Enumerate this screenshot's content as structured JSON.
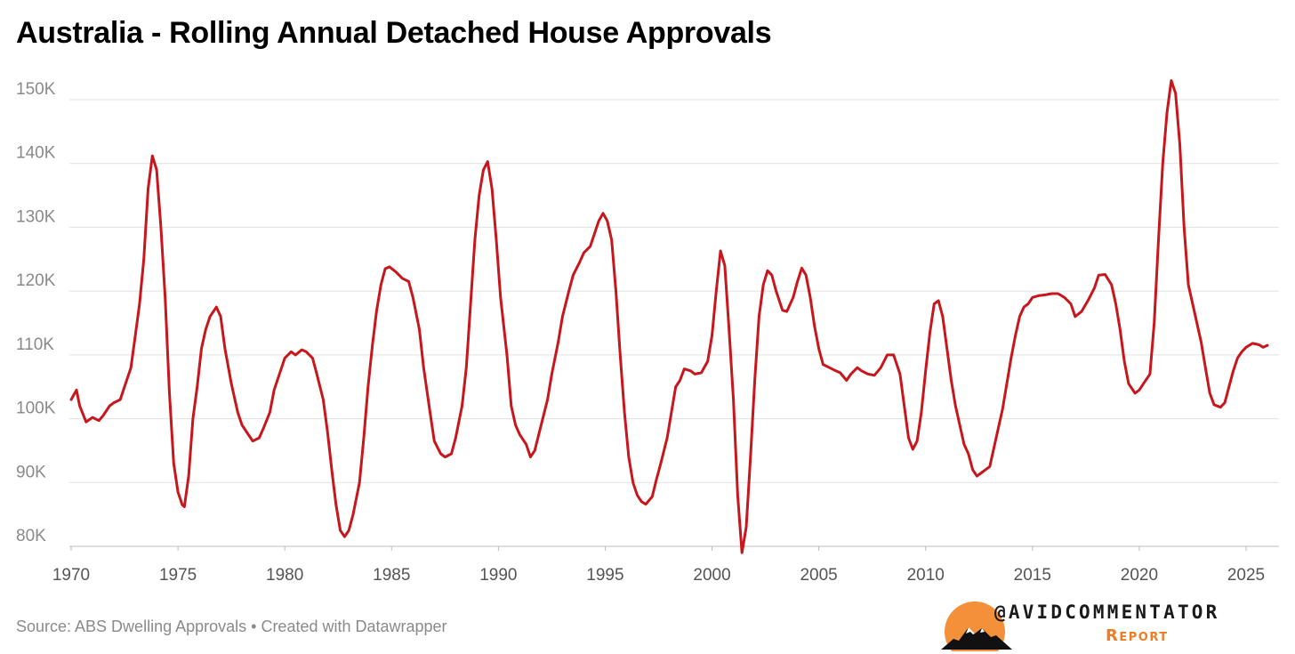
{
  "chart_data": {
    "type": "line",
    "title": "Australia - Rolling Annual Detached House Approvals",
    "xlabel": "",
    "ylabel": "",
    "xlim": [
      1970,
      2026
    ],
    "ylim": [
      80000,
      150000
    ],
    "y_ticks": [
      {
        "value": 80000,
        "label": "80K"
      },
      {
        "value": 90000,
        "label": "90K"
      },
      {
        "value": 100000,
        "label": "100K"
      },
      {
        "value": 110000,
        "label": "110K"
      },
      {
        "value": 120000,
        "label": "120K"
      },
      {
        "value": 130000,
        "label": "130K"
      },
      {
        "value": 140000,
        "label": "140K"
      },
      {
        "value": 150000,
        "label": "150K"
      }
    ],
    "x_ticks": [
      {
        "value": 1970,
        "label": "1970"
      },
      {
        "value": 1975,
        "label": "1975"
      },
      {
        "value": 1980,
        "label": "1980"
      },
      {
        "value": 1985,
        "label": "1985"
      },
      {
        "value": 1990,
        "label": "1990"
      },
      {
        "value": 1995,
        "label": "1995"
      },
      {
        "value": 2000,
        "label": "2000"
      },
      {
        "value": 2005,
        "label": "2005"
      },
      {
        "value": 2010,
        "label": "2010"
      },
      {
        "value": 2015,
        "label": "2015"
      },
      {
        "value": 2020,
        "label": "2020"
      },
      {
        "value": 2025,
        "label": "2025"
      }
    ],
    "grid": true,
    "legend": "none",
    "series": [
      {
        "name": "Rolling annual detached house approvals",
        "color": "#c8171c",
        "points": [
          [
            1970.0,
            103000
          ],
          [
            1970.25,
            104500
          ],
          [
            1970.4,
            102000
          ],
          [
            1970.7,
            99500
          ],
          [
            1971.0,
            100200
          ],
          [
            1971.3,
            99700
          ],
          [
            1971.5,
            100500
          ],
          [
            1971.8,
            102000
          ],
          [
            1972.0,
            102500
          ],
          [
            1972.3,
            103000
          ],
          [
            1972.5,
            105000
          ],
          [
            1972.8,
            108000
          ],
          [
            1973.0,
            113000
          ],
          [
            1973.2,
            118000
          ],
          [
            1973.4,
            125000
          ],
          [
            1973.6,
            136000
          ],
          [
            1973.8,
            141200
          ],
          [
            1974.0,
            139000
          ],
          [
            1974.2,
            130000
          ],
          [
            1974.4,
            119000
          ],
          [
            1974.6,
            104000
          ],
          [
            1974.8,
            93000
          ],
          [
            1975.0,
            88500
          ],
          [
            1975.2,
            86500
          ],
          [
            1975.3,
            86200
          ],
          [
            1975.5,
            91000
          ],
          [
            1975.7,
            100000
          ],
          [
            1975.9,
            105000
          ],
          [
            1976.1,
            111000
          ],
          [
            1976.3,
            114000
          ],
          [
            1976.5,
            116000
          ],
          [
            1976.8,
            117500
          ],
          [
            1977.0,
            116000
          ],
          [
            1977.2,
            111000
          ],
          [
            1977.5,
            105500
          ],
          [
            1977.8,
            101000
          ],
          [
            1978.0,
            99000
          ],
          [
            1978.3,
            97500
          ],
          [
            1978.5,
            96500
          ],
          [
            1978.8,
            97000
          ],
          [
            1979.0,
            98500
          ],
          [
            1979.3,
            101000
          ],
          [
            1979.5,
            104500
          ],
          [
            1979.8,
            107500
          ],
          [
            1980.0,
            109500
          ],
          [
            1980.3,
            110500
          ],
          [
            1980.5,
            110000
          ],
          [
            1980.8,
            110800
          ],
          [
            1981.0,
            110500
          ],
          [
            1981.3,
            109500
          ],
          [
            1981.5,
            107000
          ],
          [
            1981.8,
            103000
          ],
          [
            1982.0,
            98000
          ],
          [
            1982.2,
            92000
          ],
          [
            1982.4,
            86500
          ],
          [
            1982.6,
            82500
          ],
          [
            1982.8,
            81500
          ],
          [
            1983.0,
            82500
          ],
          [
            1983.2,
            85000
          ],
          [
            1983.5,
            90000
          ],
          [
            1983.7,
            97000
          ],
          [
            1983.9,
            105000
          ],
          [
            1984.1,
            111500
          ],
          [
            1984.3,
            117000
          ],
          [
            1984.5,
            121000
          ],
          [
            1984.7,
            123500
          ],
          [
            1984.9,
            123800
          ],
          [
            1985.2,
            123000
          ],
          [
            1985.5,
            122000
          ],
          [
            1985.8,
            121500
          ],
          [
            1986.0,
            119000
          ],
          [
            1986.3,
            114000
          ],
          [
            1986.5,
            108000
          ],
          [
            1986.8,
            101000
          ],
          [
            1987.0,
            96500
          ],
          [
            1987.3,
            94500
          ],
          [
            1987.5,
            94000
          ],
          [
            1987.8,
            94500
          ],
          [
            1988.0,
            97000
          ],
          [
            1988.3,
            102000
          ],
          [
            1988.5,
            108000
          ],
          [
            1988.7,
            118000
          ],
          [
            1988.9,
            128000
          ],
          [
            1989.1,
            135000
          ],
          [
            1989.3,
            139000
          ],
          [
            1989.5,
            140300
          ],
          [
            1989.7,
            136000
          ],
          [
            1989.9,
            128000
          ],
          [
            1990.1,
            119000
          ],
          [
            1990.4,
            110000
          ],
          [
            1990.6,
            102000
          ],
          [
            1990.8,
            99000
          ],
          [
            1991.0,
            97500
          ],
          [
            1991.3,
            96000
          ],
          [
            1991.5,
            94000
          ],
          [
            1991.7,
            95000
          ],
          [
            1992.0,
            99000
          ],
          [
            1992.3,
            103000
          ],
          [
            1992.5,
            107000
          ],
          [
            1992.8,
            112000
          ],
          [
            1993.0,
            116000
          ],
          [
            1993.3,
            120000
          ],
          [
            1993.5,
            122500
          ],
          [
            1993.8,
            124500
          ],
          [
            1994.0,
            126000
          ],
          [
            1994.3,
            127000
          ],
          [
            1994.5,
            129000
          ],
          [
            1994.7,
            131000
          ],
          [
            1994.9,
            132200
          ],
          [
            1995.1,
            131000
          ],
          [
            1995.3,
            128000
          ],
          [
            1995.5,
            120000
          ],
          [
            1995.7,
            110000
          ],
          [
            1995.9,
            101000
          ],
          [
            1996.1,
            94000
          ],
          [
            1996.3,
            90000
          ],
          [
            1996.5,
            88000
          ],
          [
            1996.7,
            87000
          ],
          [
            1996.9,
            86600
          ],
          [
            1997.2,
            87800
          ],
          [
            1997.4,
            90500
          ],
          [
            1997.6,
            93000
          ],
          [
            1997.9,
            97000
          ],
          [
            1998.1,
            101000
          ],
          [
            1998.3,
            105000
          ],
          [
            1998.5,
            106000
          ],
          [
            1998.7,
            107800
          ],
          [
            1999.0,
            107500
          ],
          [
            1999.2,
            107000
          ],
          [
            1999.5,
            107200
          ],
          [
            1999.8,
            109000
          ],
          [
            2000.0,
            113000
          ],
          [
            2000.2,
            120000
          ],
          [
            2000.4,
            126300
          ],
          [
            2000.6,
            124000
          ],
          [
            2000.8,
            114000
          ],
          [
            2001.0,
            103000
          ],
          [
            2001.2,
            88000
          ],
          [
            2001.4,
            79000
          ],
          [
            2001.6,
            83000
          ],
          [
            2001.8,
            94000
          ],
          [
            2002.0,
            106000
          ],
          [
            2002.2,
            116000
          ],
          [
            2002.4,
            121000
          ],
          [
            2002.6,
            123200
          ],
          [
            2002.8,
            122500
          ],
          [
            2003.0,
            120000
          ],
          [
            2003.3,
            117000
          ],
          [
            2003.5,
            116800
          ],
          [
            2003.8,
            119000
          ],
          [
            2004.0,
            121500
          ],
          [
            2004.2,
            123600
          ],
          [
            2004.4,
            122500
          ],
          [
            2004.6,
            119000
          ],
          [
            2004.8,
            114500
          ],
          [
            2005.0,
            111000
          ],
          [
            2005.2,
            108500
          ],
          [
            2005.5,
            108000
          ],
          [
            2005.8,
            107500
          ],
          [
            2006.0,
            107200
          ],
          [
            2006.3,
            106000
          ],
          [
            2006.5,
            107000
          ],
          [
            2006.8,
            108000
          ],
          [
            2007.0,
            107500
          ],
          [
            2007.3,
            107000
          ],
          [
            2007.6,
            106800
          ],
          [
            2007.9,
            108000
          ],
          [
            2008.2,
            110000
          ],
          [
            2008.5,
            110000
          ],
          [
            2008.8,
            107000
          ],
          [
            2009.0,
            102000
          ],
          [
            2009.2,
            97000
          ],
          [
            2009.4,
            95200
          ],
          [
            2009.6,
            96500
          ],
          [
            2009.8,
            101000
          ],
          [
            2010.0,
            107500
          ],
          [
            2010.2,
            113500
          ],
          [
            2010.4,
            118000
          ],
          [
            2010.6,
            118500
          ],
          [
            2010.8,
            116000
          ],
          [
            2011.0,
            111000
          ],
          [
            2011.2,
            106000
          ],
          [
            2011.4,
            102000
          ],
          [
            2011.6,
            99000
          ],
          [
            2011.8,
            96000
          ],
          [
            2012.0,
            94500
          ],
          [
            2012.2,
            92000
          ],
          [
            2012.4,
            91000
          ],
          [
            2012.6,
            91500
          ],
          [
            2012.8,
            92000
          ],
          [
            2013.0,
            92500
          ],
          [
            2013.2,
            95500
          ],
          [
            2013.4,
            98500
          ],
          [
            2013.6,
            101500
          ],
          [
            2013.8,
            105500
          ],
          [
            2014.0,
            109500
          ],
          [
            2014.2,
            113000
          ],
          [
            2014.4,
            116000
          ],
          [
            2014.6,
            117500
          ],
          [
            2014.8,
            118000
          ],
          [
            2015.0,
            119000
          ],
          [
            2015.3,
            119300
          ],
          [
            2015.6,
            119400
          ],
          [
            2015.9,
            119600
          ],
          [
            2016.2,
            119600
          ],
          [
            2016.5,
            119000
          ],
          [
            2016.8,
            118000
          ],
          [
            2017.0,
            116000
          ],
          [
            2017.3,
            116800
          ],
          [
            2017.6,
            118500
          ],
          [
            2017.9,
            120500
          ],
          [
            2018.1,
            122500
          ],
          [
            2018.4,
            122600
          ],
          [
            2018.7,
            121000
          ],
          [
            2018.9,
            118000
          ],
          [
            2019.1,
            114000
          ],
          [
            2019.3,
            109000
          ],
          [
            2019.5,
            105500
          ],
          [
            2019.8,
            104000
          ],
          [
            2020.0,
            104500
          ],
          [
            2020.2,
            105500
          ],
          [
            2020.5,
            107000
          ],
          [
            2020.7,
            115000
          ],
          [
            2020.9,
            128000
          ],
          [
            2021.1,
            140000
          ],
          [
            2021.3,
            148000
          ],
          [
            2021.5,
            153000
          ],
          [
            2021.7,
            151000
          ],
          [
            2021.9,
            143000
          ],
          [
            2022.1,
            130000
          ],
          [
            2022.3,
            121000
          ],
          [
            2022.5,
            118000
          ],
          [
            2022.7,
            115000
          ],
          [
            2022.9,
            112000
          ],
          [
            2023.1,
            108000
          ],
          [
            2023.3,
            104000
          ],
          [
            2023.5,
            102200
          ],
          [
            2023.8,
            101800
          ],
          [
            2024.0,
            102500
          ],
          [
            2024.2,
            105000
          ],
          [
            2024.4,
            107500
          ],
          [
            2024.6,
            109500
          ],
          [
            2024.8,
            110500
          ],
          [
            2025.0,
            111200
          ],
          [
            2025.3,
            111800
          ],
          [
            2025.6,
            111600
          ],
          [
            2025.8,
            111200
          ],
          [
            2026.0,
            111500
          ]
        ]
      }
    ],
    "source_note": "Source: ABS Dwelling Approvals • Created with Datawrapper"
  },
  "branding": {
    "handle": "@AVIDCOMMENTATOR",
    "subtitle": "Report",
    "accent": "#f07c22"
  }
}
